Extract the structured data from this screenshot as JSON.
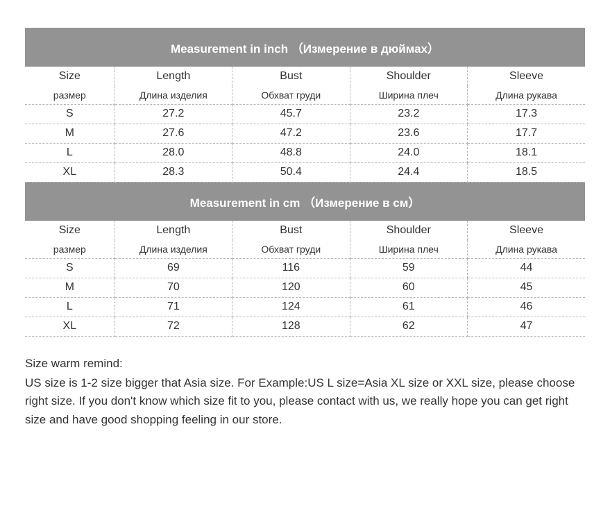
{
  "styling": {
    "banner_bg": "#939393",
    "banner_text_color": "#ffffff",
    "border_color": "#b8b8b8",
    "border_style": "dashed",
    "text_color": "#333333",
    "background_color": "#ffffff",
    "banner_font_size": 17,
    "header_font_size": 16,
    "sub_font_size": 14,
    "row_font_size": 16,
    "remind_font_size": 17
  },
  "columns": {
    "en": [
      "Size",
      "Length",
      "Bust",
      "Shoulder",
      "Sleeve"
    ],
    "ru": [
      "размер",
      "Длина изделия",
      "Обхват груди",
      "Ширина плеч",
      "Длина рукава"
    ],
    "widths_pct": [
      16,
      21,
      21,
      21,
      21
    ]
  },
  "sections": [
    {
      "banner": "Measurement in inch （Измерение в дюймах）",
      "rows": [
        [
          "S",
          "27.2",
          "45.7",
          "23.2",
          "17.3"
        ],
        [
          "M",
          "27.6",
          "47.2",
          "23.6",
          "17.7"
        ],
        [
          "L",
          "28.0",
          "48.8",
          "24.0",
          "18.1"
        ],
        [
          "XL",
          "28.3",
          "50.4",
          "24.4",
          "18.5"
        ]
      ]
    },
    {
      "banner": "Measurement in cm （Измерение в см）",
      "rows": [
        [
          "S",
          "69",
          "116",
          "59",
          "44"
        ],
        [
          "M",
          "70",
          "120",
          "60",
          "45"
        ],
        [
          "L",
          "71",
          "124",
          "61",
          "46"
        ],
        [
          "XL",
          "72",
          "128",
          "62",
          "47"
        ]
      ]
    }
  ],
  "remind": {
    "title": "Size warm remind:",
    "body": "US size is 1-2 size bigger that Asia size. For Example:US L size=Asia XL size or XXL size, please choose right size. If you don't know which size fit to you, please contact with us, we really hope you can get right size and have good shopping feeling in our store."
  }
}
